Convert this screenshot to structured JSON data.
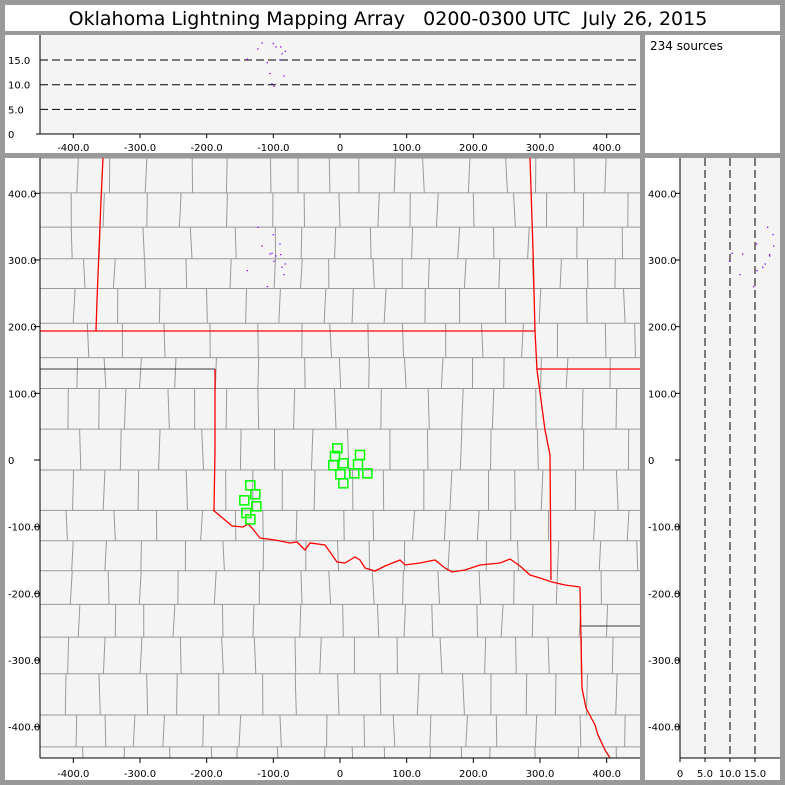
{
  "title": "Oklahoma Lightning Mapping Array   0200-0300 UTC  July 26, 2015",
  "info": {
    "source_count": "234 sources"
  },
  "colors": {
    "background": "#999999",
    "plot": "#f4f4f4",
    "state_border": "#ff0000",
    "county_border": "#999999",
    "station": "#00ff00",
    "source": "#8800ff"
  },
  "chart_data": [
    {
      "panel": "altitude-vs-east-west",
      "type": "scatter",
      "xlim": [
        -450,
        450
      ],
      "ylim": [
        0,
        20
      ],
      "x_ticks": [
        "-400.0",
        "-300.0",
        "-200.0",
        "-100.0",
        "0",
        "100.0",
        "200.0",
        "300.0",
        "400.0"
      ],
      "y_ticks": [
        "0",
        "5.0",
        "10.0",
        "15.0"
      ],
      "dashed_lines_at": [
        5,
        10,
        15
      ]
    },
    {
      "panel": "plan-view-map",
      "type": "scatter",
      "xlim": [
        -450,
        450
      ],
      "ylim": [
        -450,
        450
      ],
      "x_ticks": [
        "-400.0",
        "-300.0",
        "-200.0",
        "-100.0",
        "0",
        "100.0",
        "200.0",
        "300.0",
        "400.0"
      ],
      "y_ticks": [
        "400.0",
        "300.0",
        "200.0",
        "100.0",
        "0",
        "-100.0",
        "-200.0",
        "-300.0",
        "-400.0"
      ]
    },
    {
      "panel": "north-south-vs-altitude",
      "type": "scatter",
      "xlim": [
        0,
        20
      ],
      "ylim": [
        -450,
        450
      ],
      "x_ticks": [
        "0",
        "5.0",
        "10.0",
        "15.0"
      ],
      "y_ticks": [
        "400.0",
        "300.0",
        "200.0",
        "100.0",
        "0",
        "-100.0",
        "-200.0",
        "-300.0",
        "-400.0"
      ],
      "dashed_lines_at": [
        5,
        10,
        15
      ]
    }
  ],
  "sources": [
    {
      "x": -118,
      "y": 322,
      "alt": 18.6
    },
    {
      "x": -124,
      "y": 350,
      "alt": 17.4
    },
    {
      "x": -101,
      "y": 339,
      "alt": 18.5
    },
    {
      "x": -97,
      "y": 307,
      "alt": 17.8
    },
    {
      "x": -90,
      "y": 309,
      "alt": 17.8
    },
    {
      "x": -88,
      "y": 290,
      "alt": 16.4
    },
    {
      "x": -140,
      "y": 285,
      "alt": 15.3
    },
    {
      "x": -110,
      "y": 261,
      "alt": 14.6
    },
    {
      "x": -106,
      "y": 310,
      "alt": 12.4
    },
    {
      "x": -85,
      "y": 279,
      "alt": 11.9
    },
    {
      "x": -103,
      "y": 311,
      "alt": 10.3
    },
    {
      "x": -100,
      "y": 299,
      "alt": 9.8
    },
    {
      "x": -83,
      "y": 295,
      "alt": 16.9
    },
    {
      "x": -91,
      "y": 325,
      "alt": 15.2
    }
  ],
  "stations": [
    {
      "x": -4,
      "y": 17.5
    },
    {
      "x": -7.5,
      "y": 6
    },
    {
      "x": 30,
      "y": 7.5
    },
    {
      "x": 5,
      "y": -5
    },
    {
      "x": -10,
      "y": -8
    },
    {
      "x": 27,
      "y": -6.5
    },
    {
      "x": 0.5,
      "y": -21.5
    },
    {
      "x": 21.5,
      "y": -20
    },
    {
      "x": 41,
      "y": -20
    },
    {
      "x": 5,
      "y": -35
    },
    {
      "x": -134.5,
      "y": -38
    },
    {
      "x": -127,
      "y": -51.5
    },
    {
      "x": -143.5,
      "y": -60.5
    },
    {
      "x": -125.5,
      "y": -69.5
    },
    {
      "x": -140.5,
      "y": -79.5
    },
    {
      "x": -134.5,
      "y": -89
    }
  ]
}
